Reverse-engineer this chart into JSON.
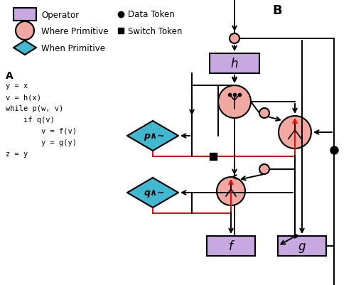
{
  "bg_color": "#ffffff",
  "op_color": "#c8a8e0",
  "where_color": "#f0a8a0",
  "when_color": "#40b8d0",
  "black": "#000000",
  "red": "#ff0000",
  "legend_op_label": "Operator",
  "legend_data_label": "Data Token",
  "legend_where_label": "Where Primitive",
  "legend_switch_label": "Switch Token",
  "legend_when_label": "When Primitive",
  "title": "B",
  "code_lines": [
    "y = x",
    "v = h(x)",
    "while p(w, v)",
    "    if q(v)",
    "        v = f(v)",
    "        y = g(y)",
    "z = y"
  ]
}
